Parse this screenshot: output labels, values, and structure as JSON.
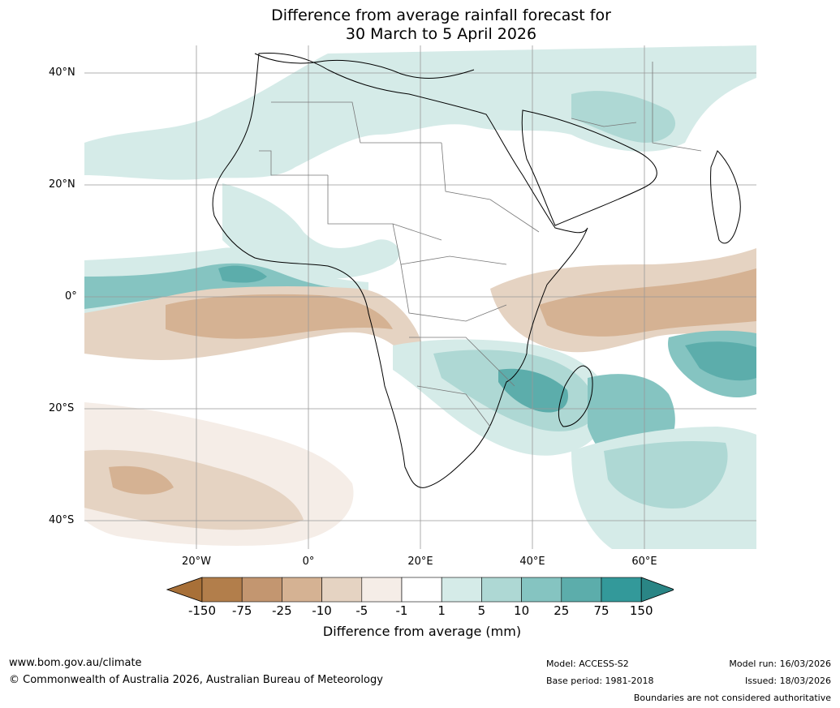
{
  "title_line1": "Difference from average rainfall forecast for",
  "title_line2": "30 March to 5 April 2026",
  "latitude_labels": [
    "40°N",
    "20°N",
    "0°",
    "20°S",
    "40°S"
  ],
  "longitude_labels": [
    "20°W",
    "0°",
    "20°E",
    "40°E",
    "60°E"
  ],
  "legend": {
    "ticks": [
      "-150",
      "-75",
      "-25",
      "-10",
      "-5",
      "-1",
      "1",
      "5",
      "10",
      "25",
      "75",
      "150"
    ],
    "colors": [
      "#a87038",
      "#b27e4b",
      "#c39670",
      "#d5b293",
      "#e5d3c2",
      "#f5ede7",
      "#ffffff",
      "#d5ebe8",
      "#aed8d4",
      "#85c4c1",
      "#5cadab",
      "#33999a",
      "#2a8585"
    ],
    "title": "Difference from average (mm)"
  },
  "footer": {
    "website": "www.bom.gov.au/climate",
    "copyright": "© Commonwealth of Australia 2026, Australian Bureau of Meteorology",
    "model": "Model: ACCESS-S2",
    "base_period": "Base period: 1981-2018",
    "model_run": "Model run: 16/03/2026",
    "issued": "Issued: 18/03/2026",
    "boundaries_note": "Boundaries are not considered authoritative"
  }
}
